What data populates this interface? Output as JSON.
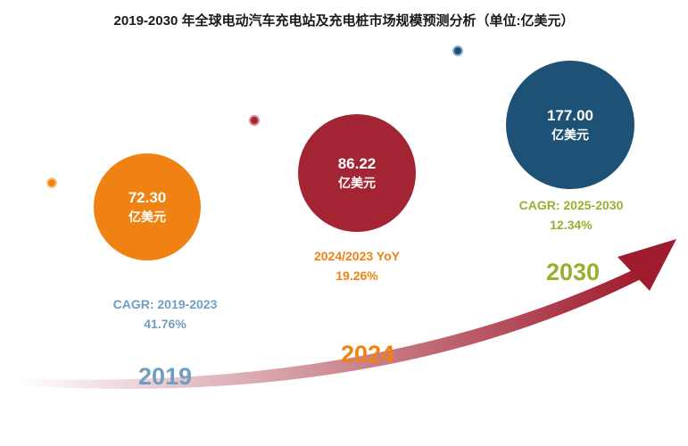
{
  "title": "2019-2030 年全球电动汽车充电站及充电桩市场规模预测分析（单位:亿美元）",
  "colors": {
    "orange": "#ef8213",
    "red": "#a32534",
    "blue": "#1d5276",
    "light_blue": "#6e9fc0",
    "olive": "#9bae2f",
    "arrow": "#9f1c2e"
  },
  "chart_data": {
    "type": "bubble-timeline",
    "title": "2019-2030 年全球电动汽车充电站及充电桩市场规模预测分析（单位:亿美元）",
    "unit": "亿美元",
    "points": [
      {
        "year": "2019",
        "value": "72.30",
        "unit": "亿美元",
        "note_label": "CAGR: 2019-2023",
        "note_value": "41.76%"
      },
      {
        "year": "2024",
        "value": "86.22",
        "unit": "亿美元",
        "note_label": "2024/2023 YoY",
        "note_value": "19.26%"
      },
      {
        "year": "2030",
        "value": "177.00",
        "unit": "亿美元",
        "note_label": "CAGR: 2025-2030",
        "note_value": "12.34%"
      }
    ]
  }
}
